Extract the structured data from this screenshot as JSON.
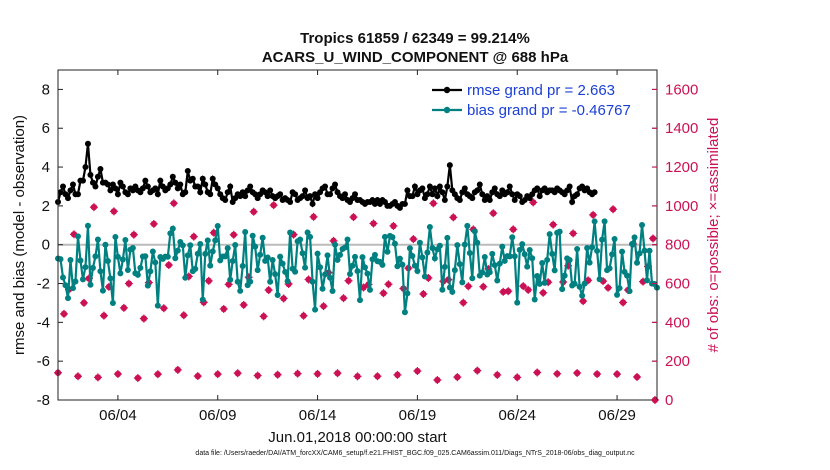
{
  "title_line1": "Tropics 61859 / 62349 = 99.214%",
  "title_line2": "ACARS_U_WIND_COMPONENT @ 688 hPa",
  "footer": "data file: /Users/raeder/DAI/ATM_forcXX/CAM6_setup/f.e21.FHIST_BGC.f09_025.CAM6assim.011/Diags_NTrS_2018-06/obs_diag_output.nc",
  "colors": {
    "rmse": "#000000",
    "bias": "#008080",
    "obs": "#cc1155",
    "zero": "#bbbbbb"
  },
  "chart_data": {
    "type": "line",
    "xlabel": "Jun.01,2018 00:00:00 start",
    "ylabel": "rmse and bias (model - observation)",
    "ylabel_right": "# of obs: o=possible; ×=assimilated",
    "xlim": [
      0,
      30
    ],
    "ylim": [
      -8,
      9
    ],
    "ylim_right": [
      0,
      1700
    ],
    "xticks": [
      {
        "x": 3,
        "label": "06/04"
      },
      {
        "x": 8,
        "label": "06/09"
      },
      {
        "x": 13,
        "label": "06/14"
      },
      {
        "x": 18,
        "label": "06/19"
      },
      {
        "x": 23,
        "label": "06/24"
      },
      {
        "x": 28,
        "label": "06/29"
      }
    ],
    "yticks": [
      "-8",
      "-6",
      "-4",
      "-2",
      "0",
      "2",
      "4",
      "6",
      "8"
    ],
    "yticks_right": [
      "0",
      "200",
      "400",
      "600",
      "800",
      "1000",
      "1200",
      "1400",
      "1600"
    ],
    "legend": [
      {
        "name": "rmse",
        "label": "rmse grand pr = 2.663"
      },
      {
        "name": "bias",
        "label": "bias grand pr = -0.46767"
      }
    ],
    "series": [
      {
        "name": "rmse",
        "values": [
          2.2,
          2.7,
          3.0,
          2.6,
          2.4,
          2.8,
          3.1,
          2.6,
          2.6,
          3.3,
          3.3,
          4.0,
          5.2,
          3.6,
          3.2,
          3.0,
          3.5,
          3.9,
          3.2,
          3.2,
          3.1,
          2.8,
          3.1,
          2.9,
          2.6,
          3.2,
          3.0,
          2.7,
          2.6,
          2.9,
          2.8,
          3.0,
          2.8,
          2.7,
          2.9,
          3.3,
          3.0,
          2.7,
          2.8,
          2.9,
          2.6,
          3.3,
          3.0,
          2.8,
          2.9,
          3.1,
          3.5,
          3.2,
          2.9,
          3.1,
          2.6,
          2.7,
          3.8,
          3.3,
          3.4,
          3.0,
          3.0,
          2.7,
          3.4,
          3.1,
          2.7,
          2.6,
          3.4,
          3.1,
          2.9,
          2.6,
          2.4,
          2.3,
          2.7,
          3.0,
          2.2,
          2.4,
          2.6,
          2.5,
          2.7,
          2.5,
          2.8,
          3.0,
          2.7,
          2.6,
          2.4,
          2.6,
          2.8,
          2.7,
          2.5,
          2.8,
          2.5,
          2.4,
          2.5,
          2.6,
          2.3,
          2.4,
          2.3,
          2.2,
          2.7,
          2.6,
          2.3,
          2.4,
          2.5,
          2.8,
          2.4,
          2.5,
          2.1,
          2.6,
          2.4,
          2.7,
          2.9,
          3.0,
          2.6,
          2.6,
          2.9,
          3.1,
          2.7,
          2.5,
          2.4,
          2.6,
          2.3,
          2.2,
          2.4,
          2.6,
          2.3,
          2.3,
          2.2,
          2.1,
          2.2,
          2.2,
          2.3,
          2.1,
          2.3,
          2.1,
          2.3,
          2.2,
          2.0,
          2.0,
          2.1,
          2.2,
          2.0,
          1.9,
          2.1,
          2.1,
          2.8,
          2.5,
          2.5,
          3.0,
          2.6,
          2.8,
          2.9,
          2.4,
          2.6,
          3.0,
          2.6,
          2.9,
          2.5,
          3.0,
          2.7,
          2.3,
          3.0,
          4.1,
          2.8,
          2.6,
          2.4,
          2.3,
          2.7,
          2.9,
          2.6,
          2.5,
          2.4,
          2.7,
          2.8,
          3.1,
          2.6,
          2.3,
          2.5,
          2.3,
          2.7,
          2.9,
          2.6,
          2.5,
          2.8,
          2.6,
          2.7,
          3.0,
          2.6,
          2.3,
          2.6,
          2.5,
          2.2,
          2.3,
          2.5,
          2.4,
          2.6,
          2.8,
          2.9,
          2.5,
          2.8,
          2.9,
          2.7,
          2.8,
          2.8,
          2.7,
          2.9,
          2.8,
          2.7,
          2.6,
          2.8,
          3.0,
          2.2,
          2.5,
          2.6,
          2.9,
          3.0,
          2.8,
          2.9,
          2.7,
          2.6,
          2.7
        ],
        "x_start": 0,
        "x_step": 0.125
      }
    ]
  }
}
